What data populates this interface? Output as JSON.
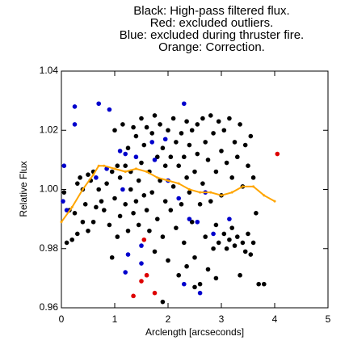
{
  "chart_data": {
    "type": "scatter",
    "title": [
      "Black: High-pass filtered flux.",
      "Red: excluded outliers.",
      "Blue: excluded during thruster fire.",
      "Orange: Correction."
    ],
    "xlabel": "Arclength [arcseconds]",
    "ylabel": "Relative Flux",
    "xlim": [
      0,
      5
    ],
    "xticks": [
      0,
      1,
      2,
      3,
      4,
      5
    ],
    "ylim": [
      0.96,
      1.04
    ],
    "yticks": [
      0.96,
      0.98,
      {
        "value": 1,
        "label": "1.00"
      },
      1.02,
      1.04
    ],
    "series": [
      {
        "color": "#000000",
        "x": [
          0.05,
          0.1,
          0.15,
          0.2,
          0.25,
          0.3,
          0.3,
          0.35,
          0.4,
          0.4,
          0.45,
          0.5,
          0.5,
          0.55,
          0.6,
          0.6,
          0.65,
          0.7,
          0.75,
          0.8,
          0.85,
          0.9,
          0.95,
          1.0,
          1.0,
          1.05,
          1.05,
          1.1,
          1.1,
          1.15,
          1.2,
          1.2,
          1.25,
          1.25,
          1.3,
          1.3,
          1.35,
          1.35,
          1.4,
          1.4,
          1.45,
          1.45,
          1.5,
          1.5,
          1.55,
          1.55,
          1.6,
          1.6,
          1.65,
          1.65,
          1.7,
          1.7,
          1.75,
          1.75,
          1.8,
          1.8,
          1.85,
          1.85,
          1.9,
          1.9,
          1.95,
          1.95,
          2.0,
          2.0,
          2.05,
          2.05,
          2.1,
          2.1,
          2.15,
          2.15,
          2.2,
          2.2,
          2.25,
          2.25,
          2.3,
          2.3,
          2.35,
          2.35,
          2.4,
          2.4,
          2.45,
          2.45,
          2.5,
          2.5,
          2.55,
          2.55,
          2.6,
          2.6,
          2.65,
          2.65,
          2.7,
          2.7,
          2.75,
          2.75,
          2.8,
          2.8,
          2.85,
          2.85,
          2.9,
          2.9,
          2.95,
          2.95,
          3.0,
          3.0,
          3.05,
          3.05,
          3.1,
          3.1,
          3.15,
          3.15,
          3.2,
          3.2,
          3.25,
          3.25,
          3.3,
          3.3,
          3.35,
          3.35,
          3.4,
          3.4,
          3.45,
          3.45,
          3.5,
          3.5,
          3.55,
          3.55,
          3.6,
          3.6,
          3.65,
          3.7,
          3.8,
          2.9,
          2.5,
          0.95,
          1.9,
          2.35
        ],
        "values": [
          0.999,
          0.982,
          0.993,
          0.983,
          0.992,
          0.985,
          1.002,
          1.004,
          0.989,
          1.0,
          0.995,
          0.986,
          1.005,
          1.003,
          0.989,
          1.006,
          0.994,
          1.0,
          0.996,
          0.993,
          1.002,
          0.988,
          1.006,
          0.997,
          1.02,
          1.008,
          0.984,
          0.991,
          1.004,
          1.022,
          0.995,
          1.008,
          0.986,
          1.014,
          1.0,
          1.006,
          0.992,
          1.021,
          1.018,
          0.996,
          1.003,
          0.988,
          1.009,
          1.024,
          0.998,
          1.015,
          0.993,
          1.021,
          1.006,
          0.986,
          1.019,
          0.999,
          1.025,
          0.979,
          1.011,
          0.99,
          1.022,
          1.003,
          0.984,
          1.014,
          1.008,
          0.996,
          1.02,
          0.976,
          1.011,
          0.993,
          1.024,
          1.001,
          0.987,
          1.016,
          1.008,
          0.971,
          1.019,
          0.995,
          1.011,
          0.982,
          1.004,
          1.023,
          0.999,
          1.015,
          0.989,
          1.02,
          1.006,
          0.977,
          1.022,
          1.012,
          0.995,
          0.968,
          1.024,
          1.002,
          1.016,
          0.984,
          1.01,
          0.973,
          1.025,
          0.996,
          1.019,
          0.98,
          1.006,
          0.988,
          1.023,
          0.982,
          1.013,
          0.998,
          0.985,
          1.02,
          1.009,
          0.98,
          1.024,
          0.983,
          1.004,
          0.987,
          1.016,
          0.981,
          1.011,
          0.984,
          1.022,
          0.971,
          1.001,
          0.982,
          1.015,
          0.979,
          1.008,
          0.985,
          1.018,
          0.978,
          1.004,
          0.982,
          0.992,
          0.968,
          0.968,
          0.97,
          0.967,
          0.977,
          0.962,
          0.974
        ]
      },
      {
        "color": "#0000cc",
        "x": [
          0.25,
          0.25,
          0.7,
          0.9,
          1.1,
          1.2,
          1.7,
          1.95,
          2.3,
          0.05,
          0.03,
          0.1,
          0.65,
          0.85,
          1.4,
          1.75,
          2.0,
          2.2,
          2.4,
          2.55,
          2.85,
          3.15,
          1.25,
          1.5,
          1.5,
          2.3,
          2.6,
          2.7,
          1.15,
          1.2
        ],
        "values": [
          1.028,
          1.022,
          1.029,
          1.027,
          1.013,
          1.012,
          1.016,
          1.017,
          1.029,
          1.008,
          0.996,
          0.993,
          1.004,
          1.007,
          1.011,
          1.01,
          1.003,
          0.997,
          0.99,
          0.989,
          0.985,
          0.99,
          0.978,
          0.981,
          0.975,
          0.968,
          0.965,
          0.999,
          1.0,
          0.972
        ]
      },
      {
        "color": "#dd0000",
        "x": [
          1.35,
          1.5,
          1.6,
          1.55,
          1.75,
          4.05
        ],
        "values": [
          0.964,
          0.969,
          0.971,
          0.983,
          0.965,
          1.012
        ]
      },
      {
        "color": "#ffa500",
        "line": true,
        "x": [
          0,
          0.2,
          0.4,
          0.6,
          0.7,
          0.8,
          1.0,
          1.2,
          1.4,
          1.6,
          1.8,
          2.0,
          2.2,
          2.4,
          2.6,
          2.8,
          3.0,
          3.2,
          3.4,
          3.6,
          3.8,
          4.0
        ],
        "values": [
          0.989,
          0.994,
          1.0,
          1.005,
          1.008,
          1.008,
          1.007,
          1.006,
          1.007,
          1.006,
          1.004,
          1.003,
          1.002,
          1.0,
          0.999,
          0.999,
          0.998,
          0.999,
          1.001,
          1.001,
          0.998,
          0.996
        ]
      }
    ]
  }
}
